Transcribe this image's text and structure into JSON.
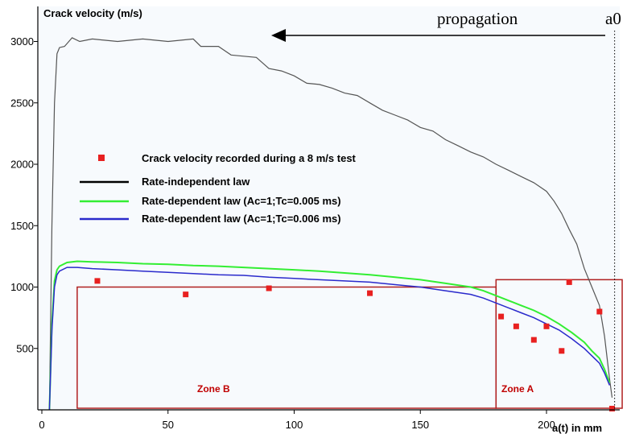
{
  "chart_data": {
    "type": "line",
    "ylabel": "Crack velocity (m/s)",
    "xlabel": "a(t) in mm",
    "xlim": [
      0,
      230
    ],
    "ylim": [
      0,
      3150
    ],
    "xticks": [
      0,
      50,
      100,
      150,
      200
    ],
    "yticks": [
      500,
      1000,
      1500,
      2000,
      2500,
      3000
    ],
    "grid": false,
    "legend_position": "center-left",
    "colors": {
      "recorded": "#e82020",
      "rate_independent": "#000000",
      "ac1_tc0005": "#33ee33",
      "ac1_tc0006": "#2a2acc",
      "zone_box": "#b02020",
      "plot_bg": "#f7fafd"
    },
    "annotations": {
      "propagation": "propagation",
      "a0": "a0",
      "a0_x": 227,
      "zone_a": "Zone A",
      "zone_b": "Zone B",
      "zone_a_x": [
        180,
        230
      ],
      "zone_a_y": [
        0,
        1060
      ],
      "zone_b_x": [
        14,
        180
      ],
      "zone_b_y": [
        0,
        1000
      ]
    },
    "series": [
      {
        "name": "Crack velocity recorded during a 8 m/s test",
        "kind": "scatter",
        "x": [
          22,
          57,
          90,
          130,
          182,
          188,
          195,
          200,
          206,
          209,
          221,
          226
        ],
        "y": [
          1050,
          940,
          990,
          950,
          760,
          680,
          570,
          680,
          480,
          1040,
          800,
          10
        ]
      },
      {
        "name": "Rate-independent law",
        "kind": "line",
        "x": [
          3,
          4,
          5,
          6,
          7,
          9,
          12,
          15,
          20,
          30,
          40,
          50,
          60,
          63,
          66,
          70,
          75,
          80,
          85,
          90,
          95,
          100,
          105,
          110,
          115,
          120,
          125,
          130,
          135,
          140,
          145,
          150,
          155,
          160,
          165,
          170,
          175,
          180,
          185,
          190,
          195,
          200,
          203,
          206,
          209,
          212,
          215,
          218,
          221,
          223,
          225,
          226
        ],
        "y": [
          0,
          1500,
          2500,
          2900,
          2950,
          2960,
          3030,
          3000,
          3020,
          3000,
          3020,
          3000,
          3020,
          2960,
          2960,
          2960,
          2890,
          2880,
          2870,
          2780,
          2760,
          2720,
          2660,
          2650,
          2620,
          2580,
          2560,
          2500,
          2440,
          2400,
          2360,
          2300,
          2270,
          2200,
          2150,
          2100,
          2060,
          2000,
          1950,
          1900,
          1850,
          1780,
          1700,
          1600,
          1470,
          1350,
          1150,
          1000,
          850,
          600,
          250,
          100
        ]
      },
      {
        "name": "Rate-dependent law (Ac=1;Tc=0.005 ms)",
        "kind": "line",
        "x": [
          3,
          4,
          5,
          6,
          7,
          10,
          14,
          20,
          30,
          40,
          50,
          60,
          70,
          80,
          90,
          100,
          110,
          120,
          130,
          140,
          150,
          160,
          170,
          175,
          180,
          185,
          190,
          195,
          200,
          205,
          210,
          215,
          218,
          221,
          223,
          225
        ],
        "y": [
          0,
          700,
          1050,
          1140,
          1170,
          1200,
          1210,
          1205,
          1200,
          1190,
          1185,
          1175,
          1170,
          1160,
          1150,
          1140,
          1130,
          1115,
          1100,
          1080,
          1060,
          1030,
          1000,
          970,
          930,
          890,
          850,
          810,
          760,
          700,
          630,
          550,
          480,
          420,
          330,
          220
        ]
      },
      {
        "name": "Rate-dependent law (Ac=1;Tc=0.006 ms)",
        "kind": "line",
        "x": [
          3,
          4,
          5,
          6,
          7,
          10,
          14,
          20,
          30,
          40,
          50,
          60,
          70,
          80,
          90,
          100,
          110,
          120,
          130,
          140,
          150,
          160,
          170,
          175,
          180,
          185,
          190,
          195,
          200,
          205,
          210,
          215,
          218,
          221,
          223,
          225
        ],
        "y": [
          0,
          650,
          1000,
          1100,
          1130,
          1160,
          1160,
          1150,
          1140,
          1130,
          1120,
          1110,
          1100,
          1095,
          1080,
          1070,
          1060,
          1050,
          1040,
          1020,
          1000,
          970,
          940,
          910,
          870,
          830,
          790,
          750,
          700,
          650,
          580,
          500,
          440,
          380,
          300,
          200
        ]
      }
    ]
  }
}
